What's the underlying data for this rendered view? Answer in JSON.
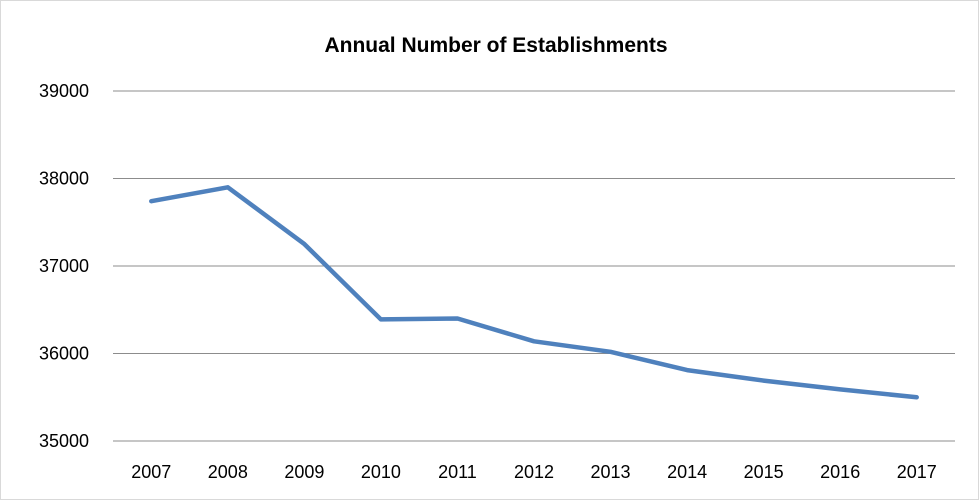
{
  "chart_data": {
    "type": "line",
    "title": "Annual Number of Establishments",
    "xlabel": "",
    "ylabel": "",
    "categories": [
      "2007",
      "2008",
      "2009",
      "2010",
      "2011",
      "2012",
      "2013",
      "2014",
      "2015",
      "2016",
      "2017"
    ],
    "series": [
      {
        "values": [
          37740,
          37900,
          37250,
          36390,
          36400,
          36140,
          36020,
          35810,
          35690,
          35590,
          35500
        ],
        "color": "#4f81bd"
      }
    ],
    "ylim": [
      35000,
      39000
    ],
    "yticks": [
      35000,
      36000,
      37000,
      38000,
      39000
    ],
    "grid": true,
    "legend": "none"
  }
}
